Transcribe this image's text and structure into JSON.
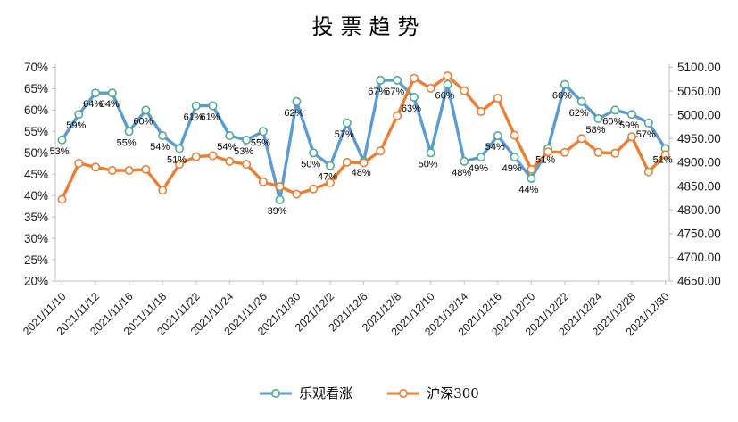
{
  "chart_data": {
    "type": "line",
    "title": "投票趋势",
    "point_count": 37,
    "x_ticks": [
      {
        "index": 0,
        "label": "2021/11/10"
      },
      {
        "index": 2,
        "label": "2021/11/12"
      },
      {
        "index": 4,
        "label": "2021/11/16"
      },
      {
        "index": 6,
        "label": "2021/11/18"
      },
      {
        "index": 8,
        "label": "2021/11/22"
      },
      {
        "index": 10,
        "label": "2021/11/24"
      },
      {
        "index": 12,
        "label": "2021/11/26"
      },
      {
        "index": 14,
        "label": "2021/11/30"
      },
      {
        "index": 16,
        "label": "2021/12/2"
      },
      {
        "index": 18,
        "label": "2021/12/6"
      },
      {
        "index": 20,
        "label": "2021/12/8"
      },
      {
        "index": 22,
        "label": "2021/12/10"
      },
      {
        "index": 24,
        "label": "2021/12/14"
      },
      {
        "index": 26,
        "label": "2021/12/16"
      },
      {
        "index": 28,
        "label": "2021/12/20"
      },
      {
        "index": 30,
        "label": "2021/12/22"
      },
      {
        "index": 32,
        "label": "2021/12/24"
      },
      {
        "index": 34,
        "label": "2021/12/28"
      },
      {
        "index": 36,
        "label": "2021/12/30"
      }
    ],
    "left_axis": {
      "min": 20,
      "max": 70,
      "step": 5,
      "tick_labels": [
        "70%",
        "65%",
        "60%",
        "55%",
        "50%",
        "45%",
        "40%",
        "35%",
        "30%",
        "25%",
        "20%"
      ]
    },
    "right_axis": {
      "min": 4650,
      "max": 5100,
      "step": 50,
      "tick_labels": [
        "5100.00",
        "5050.00",
        "5000.00",
        "4950.00",
        "4900.00",
        "4850.00",
        "4800.00",
        "4750.00",
        "4700.00",
        "4650.00"
      ]
    },
    "series": [
      {
        "name": "乐观看涨",
        "axis": "left",
        "color": "#5B9BD5",
        "marker_color": "#4BAD8D",
        "label_format": "percent",
        "show_labels": true,
        "values": [
          53,
          59,
          64,
          64,
          55,
          60,
          54,
          51,
          61,
          61,
          54,
          53,
          55,
          39,
          62,
          50,
          47,
          57,
          48,
          67,
          67,
          63,
          50,
          66,
          48,
          49,
          54,
          49,
          44,
          51,
          66,
          62,
          58,
          60,
          59,
          57,
          51
        ]
      },
      {
        "name": "沪深300",
        "axis": "right",
        "color": "#ED7D31",
        "marker_color": "#ED7D31",
        "label_format": "none",
        "show_labels": false,
        "values": [
          4822,
          4898,
          4890,
          4883,
          4883,
          4885,
          4841,
          4896,
          4912,
          4914,
          4902,
          4896,
          4859,
          4849,
          4833,
          4844,
          4857,
          4900,
          4899,
          4924,
          4998,
          5077,
          5056,
          5082,
          5051,
          5007,
          5035,
          4957,
          4885,
          4922,
          4921,
          4950,
          4921,
          4919,
          4954,
          4880,
          4916
        ]
      }
    ],
    "legend_position": "bottom",
    "grid": "off",
    "axis_line_color": "#BFBFBF",
    "tick_text_color": "#1a1a1a",
    "data_label_color": "#000000"
  }
}
